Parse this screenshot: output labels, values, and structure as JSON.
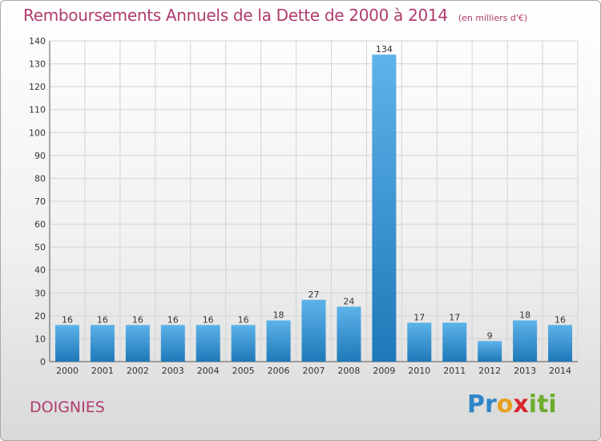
{
  "header": {
    "title": "Remboursements Annuels de la Dette de 2000 à 2014",
    "unit": "(en milliers d'€)"
  },
  "footer": {
    "city": "DOIGNIES",
    "logo_parts": [
      "Pr",
      "o",
      "x",
      "iti"
    ]
  },
  "colors": {
    "title": "#b03c6e",
    "bar_light": "#5db3ea",
    "bar_dark": "#1f79b8",
    "grid": "#d4d4d4"
  },
  "chart_data": {
    "type": "bar",
    "title": "Remboursements Annuels de la Dette de 2000 à 2014",
    "xlabel": "",
    "ylabel": "",
    "categories": [
      "2000",
      "2001",
      "2002",
      "2003",
      "2004",
      "2005",
      "2006",
      "2007",
      "2008",
      "2009",
      "2010",
      "2011",
      "2012",
      "2013",
      "2014"
    ],
    "values": [
      16,
      16,
      16,
      16,
      16,
      16,
      18,
      27,
      24,
      134,
      17,
      17,
      9,
      18,
      16
    ],
    "ylim": [
      0,
      140
    ],
    "yticks": [
      0,
      10,
      20,
      30,
      40,
      50,
      60,
      70,
      80,
      90,
      100,
      110,
      120,
      130,
      140
    ],
    "grid": true,
    "legend": "none"
  }
}
